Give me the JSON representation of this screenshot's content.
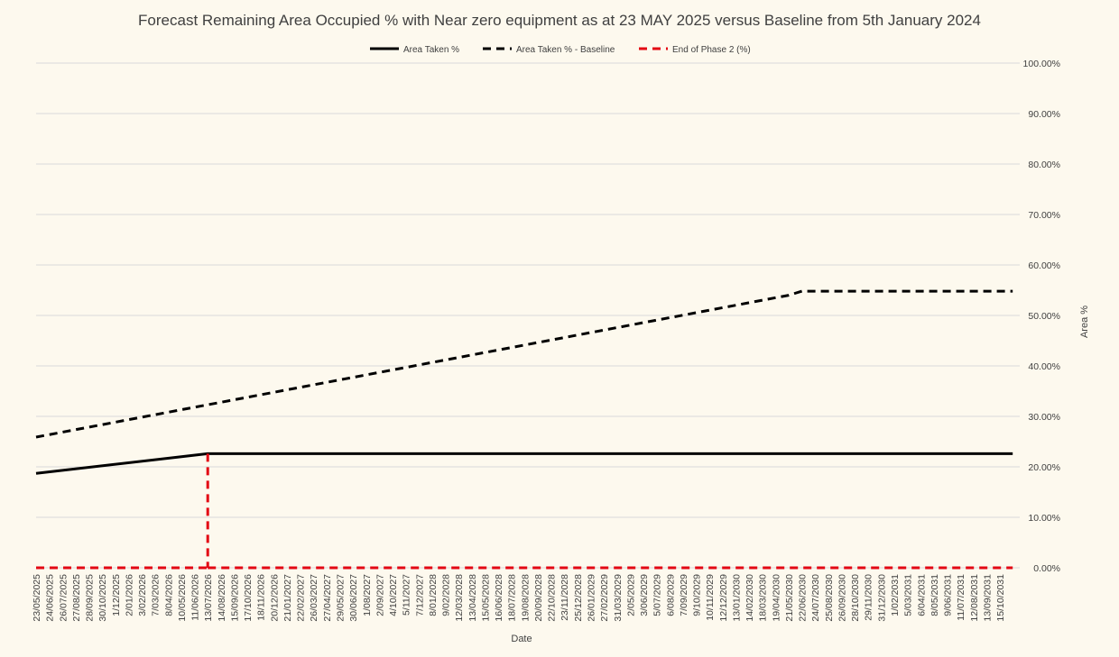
{
  "chart_data": {
    "type": "line",
    "title": "Forecast Remaining Area Occupied % with Near zero equipment as at 23 MAY 2025 versus Baseline from 5th January 2024",
    "xlabel": "Date",
    "ylabel": "Area %",
    "ylim": [
      0,
      100
    ],
    "y_axis_side": "right",
    "y_ticks": [
      "0.00%",
      "10.00%",
      "20.00%",
      "30.00%",
      "40.00%",
      "50.00%",
      "60.00%",
      "70.00%",
      "80.00%",
      "90.00%",
      "100.00%"
    ],
    "grid": true,
    "legend_position": "top",
    "x_tick_labels": [
      "23/05/2025",
      "24/06/2025",
      "26/07/2025",
      "27/08/2025",
      "28/09/2025",
      "30/10/2025",
      "1/12/2025",
      "2/01/2026",
      "3/02/2026",
      "7/03/2026",
      "8/04/2026",
      "10/05/2026",
      "11/06/2026",
      "13/07/2026",
      "14/08/2026",
      "15/09/2026",
      "17/10/2026",
      "18/11/2026",
      "20/12/2026",
      "21/01/2027",
      "22/02/2027",
      "26/03/2027",
      "27/04/2027",
      "29/05/2027",
      "30/06/2027",
      "1/08/2027",
      "2/09/2027",
      "4/10/2027",
      "5/11/2027",
      "7/12/2027",
      "8/01/2028",
      "9/02/2028",
      "12/03/2028",
      "13/04/2028",
      "15/05/2028",
      "16/06/2028",
      "18/07/2028",
      "19/08/2028",
      "20/09/2028",
      "22/10/2028",
      "23/11/2028",
      "25/12/2028",
      "26/01/2029",
      "27/02/2029",
      "31/03/2029",
      "2/05/2029",
      "3/06/2029",
      "5/07/2029",
      "6/08/2029",
      "7/09/2029",
      "9/10/2029",
      "10/11/2029",
      "12/12/2029",
      "13/01/2030",
      "14/02/2030",
      "18/03/2030",
      "19/04/2030",
      "21/05/2030",
      "22/06/2030",
      "24/07/2030",
      "25/08/2030",
      "26/09/2030",
      "28/10/2030",
      "29/11/2030",
      "31/12/2030",
      "1/02/2031",
      "5/03/2031",
      "6/04/2031",
      "8/05/2031",
      "9/06/2031",
      "11/07/2031",
      "12/08/2031",
      "13/09/2031",
      "15/10/2031"
    ],
    "series": [
      {
        "name": "Area Taken %",
        "color": "#000000",
        "dash": "solid",
        "x": [
          "23/05/2025",
          "13/07/2026",
          "15/10/2031",
          "15/11/2031"
        ],
        "y": [
          18.7,
          22.6,
          22.6,
          22.6
        ]
      },
      {
        "name": "Area Taken % - Baseline",
        "color": "#000000",
        "dash": "dashed",
        "x": [
          "23/05/2025",
          "21/05/2030",
          "22/06/2030",
          "15/11/2031"
        ],
        "y": [
          25.9,
          54.0,
          54.8,
          54.8
        ]
      },
      {
        "name": "End of Phase 2 (%)",
        "color": "#e30613",
        "dash": "dashed",
        "x": [
          "23/05/2025",
          "13/07/2026",
          "13/07/2026",
          "15/11/2031"
        ],
        "y": [
          0,
          22.6,
          0,
          0
        ],
        "segments": [
          {
            "x": [
              "23/05/2025",
              "13/07/2026"
            ],
            "y": [
              0,
              0
            ]
          },
          {
            "x": [
              "13/07/2026",
              "13/07/2026"
            ],
            "y": [
              22.6,
              0
            ]
          },
          {
            "x": [
              "13/07/2026",
              "15/11/2031"
            ],
            "y": [
              0,
              0
            ]
          }
        ]
      }
    ]
  }
}
